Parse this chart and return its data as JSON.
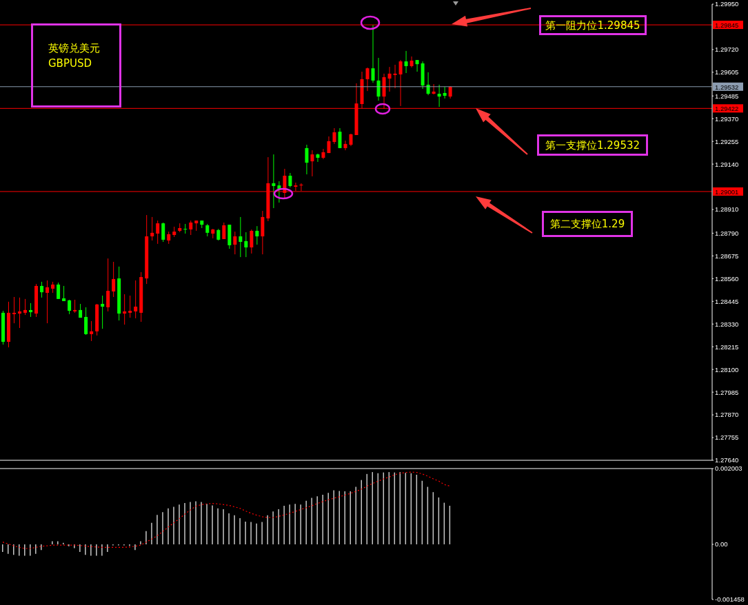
{
  "chart_data": [
    {
      "type": "candlestick",
      "categories": [
        null,
        null,
        null,
        null,
        null,
        null,
        null,
        null,
        null,
        null,
        null,
        null,
        null,
        null,
        null,
        null,
        null,
        null,
        null,
        null,
        null,
        null,
        null,
        null,
        null,
        null,
        null,
        null,
        null,
        null,
        null,
        null,
        null,
        null,
        null,
        null,
        null,
        null,
        null,
        null,
        null,
        null,
        null,
        null,
        null,
        null,
        null,
        null,
        null,
        null,
        null,
        null,
        null,
        null,
        null,
        null,
        null,
        null,
        null,
        null,
        null,
        null,
        null,
        null,
        null,
        null,
        null,
        null,
        null,
        null,
        null,
        null,
        null,
        null,
        null,
        null,
        null,
        null,
        null,
        null,
        null,
        null,
        null,
        null,
        null,
        null,
        null,
        null,
        null,
        null,
        null,
        null,
        null,
        null,
        null,
        null,
        null,
        null,
        null,
        null,
        null,
        null,
        null,
        null,
        null,
        null,
        null,
        null,
        null,
        null,
        null,
        null,
        null,
        null,
        null,
        null,
        null,
        null,
        null,
        null,
        null,
        null,
        null,
        null,
        null,
        null,
        null,
        null,
        null
      ],
      "ohlc": [
        [
          1.28387,
          1.28397,
          1.28226,
          1.2824
        ],
        [
          1.2824,
          1.28443,
          1.28212,
          1.28387
        ],
        [
          1.2838,
          1.28467,
          1.28334,
          1.28387
        ],
        [
          1.28383,
          1.28464,
          1.2831,
          1.28394
        ],
        [
          1.28387,
          1.28457,
          1.28376,
          1.28401
        ],
        [
          1.28401,
          1.28436,
          1.28366,
          1.2839
        ],
        [
          1.28383,
          1.28533,
          1.28366,
          1.28523
        ],
        [
          1.28523,
          1.28544,
          1.28464,
          1.28491
        ],
        [
          1.28488,
          1.28551,
          1.28334,
          1.28516
        ],
        [
          1.28509,
          1.28544,
          1.28488,
          1.2853
        ],
        [
          1.2853,
          1.2854,
          1.28457,
          1.28457
        ],
        [
          1.2846,
          1.28523,
          1.28446,
          1.28446
        ],
        [
          1.2845,
          1.28453,
          1.2838,
          1.28397
        ],
        [
          1.28394,
          1.28453,
          1.28387,
          1.28401
        ],
        [
          1.28401,
          1.28432,
          1.28362,
          1.28362
        ],
        [
          1.28366,
          1.28415,
          1.28275,
          1.28279
        ],
        [
          1.28279,
          1.28345,
          1.28244,
          1.28293
        ],
        [
          1.28293,
          1.28432,
          1.28272,
          1.28429
        ],
        [
          1.28432,
          1.28474,
          1.28306,
          1.28418
        ],
        [
          1.28415,
          1.28662,
          1.28394,
          1.28498
        ],
        [
          1.28495,
          1.28645,
          1.28467,
          1.28558
        ],
        [
          1.28561,
          1.28621,
          1.28348,
          1.28383
        ],
        [
          1.28383,
          1.28481,
          1.28327,
          1.28394
        ],
        [
          1.28387,
          1.28474,
          1.28362,
          1.28397
        ],
        [
          1.28394,
          1.28551,
          1.28359,
          1.28418
        ],
        [
          1.28387,
          1.28593,
          1.28341,
          1.28568
        ],
        [
          1.28561,
          1.28882,
          1.28533,
          1.28774
        ],
        [
          1.28774,
          1.28872,
          1.28753,
          1.28792
        ],
        [
          1.28788,
          1.28854,
          1.28736,
          1.2884
        ],
        [
          1.2884,
          1.28844,
          1.28746,
          1.28757
        ],
        [
          1.28753,
          1.28798,
          1.28736,
          1.28785
        ],
        [
          1.28781,
          1.28823,
          1.28771,
          1.28798
        ],
        [
          1.28802,
          1.2884,
          1.28795,
          1.28816
        ],
        [
          1.28812,
          1.28837,
          1.28788,
          1.28809
        ],
        [
          1.28809,
          1.28854,
          1.28781,
          1.28844
        ],
        [
          1.2884,
          1.28854,
          1.28802,
          1.28854
        ],
        [
          1.28854,
          1.28854,
          1.28816,
          1.28833
        ],
        [
          1.2883,
          1.28837,
          1.28774,
          1.28792
        ],
        [
          1.28788,
          1.28812,
          1.28764,
          1.28809
        ],
        [
          1.28806,
          1.28812,
          1.28753,
          1.28757
        ],
        [
          1.2876,
          1.28844,
          1.2876,
          1.2883
        ],
        [
          1.28833,
          1.28833,
          1.28711,
          1.28729
        ],
        [
          1.28732,
          1.28798,
          1.28683,
          1.28774
        ],
        [
          1.28774,
          1.28872,
          1.28669,
          1.28746
        ],
        [
          1.2875,
          1.28795,
          1.28669,
          1.28718
        ],
        [
          1.28718,
          1.28809,
          1.28687,
          1.28802
        ],
        [
          1.28802,
          1.28826,
          1.28732,
          1.28774
        ],
        [
          1.28774,
          1.28903,
          1.28683,
          1.28872
        ],
        [
          1.28865,
          1.29175,
          1.28851,
          1.29043
        ],
        [
          1.29043,
          1.29189,
          1.28917,
          1.29029
        ],
        [
          1.29032,
          1.29053,
          1.28945,
          1.29011
        ],
        [
          1.28994,
          1.29116,
          1.28969,
          1.29081
        ],
        [
          1.29081,
          1.29095,
          1.29022,
          1.29029
        ],
        [
          1.29025,
          1.29046,
          1.29004,
          1.29032
        ],
        [
          1.29032,
          1.29043,
          1.29004,
          1.29036
        ],
        [
          1.29221,
          1.29238,
          1.29088,
          1.29147
        ],
        [
          1.29154,
          1.2921,
          1.29078,
          1.29189
        ],
        [
          1.29189,
          1.29193,
          1.29151,
          1.29172
        ],
        [
          1.29172,
          1.29217,
          1.29165,
          1.292
        ],
        [
          1.29196,
          1.2928,
          1.29196,
          1.29256
        ],
        [
          1.29252,
          1.29322,
          1.29242,
          1.29301
        ],
        [
          1.29304,
          1.29322,
          1.29221,
          1.29221
        ],
        [
          1.29221,
          1.29259,
          1.2921,
          1.29242
        ],
        [
          1.29238,
          1.29294,
          1.29231,
          1.29291
        ],
        [
          1.29287,
          1.29549,
          1.29287,
          1.29447
        ],
        [
          1.29444,
          1.29608,
          1.29423,
          1.2957
        ],
        [
          1.2957,
          1.29629,
          1.2951,
          1.29625
        ],
        [
          1.29625,
          1.29845,
          1.29552,
          1.29563
        ],
        [
          1.29563,
          1.29678,
          1.29461,
          1.29482
        ],
        [
          1.29482,
          1.29598,
          1.2942,
          1.2958
        ],
        [
          1.29573,
          1.29632,
          1.29507,
          1.29598
        ],
        [
          1.29591,
          1.29643,
          1.29524,
          1.29598
        ],
        [
          1.29594,
          1.29667,
          1.29434,
          1.2966
        ],
        [
          1.2966,
          1.29713,
          1.29601,
          1.29636
        ],
        [
          1.29636,
          1.29685,
          1.29629,
          1.29664
        ],
        [
          1.29667,
          1.29667,
          1.29608,
          1.29646
        ],
        [
          1.2965,
          1.2966,
          1.29521,
          1.29538
        ],
        [
          1.29542,
          1.29605,
          1.29489,
          1.29496
        ],
        [
          1.29496,
          1.29545,
          1.29493,
          1.29507
        ],
        [
          1.29496,
          1.29542,
          1.2943,
          1.29482
        ],
        [
          1.295,
          1.29531,
          1.29472,
          1.29486
        ],
        [
          1.29482,
          1.29535,
          1.29472,
          1.29531
        ],
        null,
        null,
        null,
        null,
        null,
        null,
        null,
        null,
        null,
        null,
        null,
        null,
        null,
        null,
        null,
        null,
        null,
        null,
        null,
        null,
        null,
        null,
        null,
        null,
        null,
        null,
        null,
        null,
        null,
        null,
        null,
        null,
        null,
        null,
        null,
        null,
        null,
        null,
        null,
        null,
        null,
        null,
        null,
        null,
        null,
        null,
        null
      ],
      "colors": [
        "#00ff00",
        "#ff0000",
        "#ff0000",
        "#ff0000",
        "#ff0000",
        "#00ff00",
        "#ff0000",
        "#00ff00",
        "#ff0000",
        "#ff0000",
        "#00ff00",
        "#00ff00",
        "#00ff00",
        "#ff0000",
        "#00ff00",
        "#00ff00",
        "#ff0000",
        "#ff0000",
        "#00ff00",
        "#ff0000",
        "#ff0000",
        "#00ff00",
        "#ff0000",
        "#ff0000",
        "#ff0000",
        "#ff0000",
        "#ff0000",
        "#ff0000",
        "#ff0000",
        "#00ff00",
        "#ff0000",
        "#ff0000",
        "#ff0000",
        "#00ff00",
        "#ff0000",
        "#ff0000",
        "#00ff00",
        "#00ff00",
        "#ff0000",
        "#00ff00",
        "#ff0000",
        "#00ff00",
        "#ff0000",
        "#00ff00",
        "#00ff00",
        "#ff0000",
        "#00ff00",
        "#ff0000",
        "#ff0000",
        "#00ff00",
        "#00ff00",
        "#ff0000",
        "#00ff00",
        "#ff0000",
        "#ff0000",
        "#00ff00",
        "#ff0000",
        "#00ff00",
        "#ff0000",
        "#ff0000",
        "#ff0000",
        "#00ff00",
        "#ff0000",
        "#ff0000",
        "#ff0000",
        "#ff0000",
        "#ff0000",
        "#00ff00",
        "#00ff00",
        "#ff0000",
        "#ff0000",
        "#ff0000",
        "#ff0000",
        "#00ff00",
        "#ff0000",
        "#00ff00",
        "#00ff00",
        "#00ff00",
        "#ff0000",
        "#00ff00",
        "#00ff00",
        "#ff0000",
        null,
        null,
        null,
        null,
        null,
        null,
        null,
        null,
        null,
        null,
        null,
        null,
        null,
        null,
        null,
        null,
        null,
        null,
        null,
        null,
        null,
        null,
        null,
        null,
        null,
        null,
        null,
        null,
        null,
        null,
        null,
        null,
        null,
        null,
        null,
        null,
        null,
        null,
        null,
        null,
        null,
        null,
        null,
        null,
        null,
        null,
        null
      ],
      "ylim": [
        1.2764,
        1.2995
      ],
      "yticks": [
        {
          "value": 1.2764,
          "label": "1.27640"
        },
        {
          "value": 1.27755,
          "label": "1.27755"
        },
        {
          "value": 1.2787,
          "label": "1.27870"
        },
        {
          "value": 1.27985,
          "label": "1.27985"
        },
        {
          "value": 1.281,
          "label": "1.28100"
        },
        {
          "value": 1.28215,
          "label": "1.28215"
        },
        {
          "value": 1.2833,
          "label": "1.28330"
        },
        {
          "value": 1.28445,
          "label": "1.28445"
        },
        {
          "value": 1.2856,
          "label": "1.28560"
        },
        {
          "value": 1.28675,
          "label": "1.28675"
        },
        {
          "value": 1.2879,
          "label": "1.28790"
        },
        {
          "value": 1.2891,
          "label": "1.28910"
        },
        {
          "value": 1.2914,
          "label": "1.29140"
        },
        {
          "value": 1.29255,
          "label": "1.29255"
        },
        {
          "value": 1.2937,
          "label": "1.29370"
        },
        {
          "value": 1.29485,
          "label": "1.29485"
        },
        {
          "value": 1.29605,
          "label": "1.29605"
        },
        {
          "value": 1.2972,
          "label": "1.29720"
        },
        {
          "value": 1.2995,
          "label": "1.29950"
        }
      ],
      "tick_labels": "y",
      "ref_lines": [
        {
          "axis": "y",
          "value": 1.29845,
          "label": "1.29845",
          "color": "#ff0000"
        },
        {
          "axis": "y",
          "value": 1.29532,
          "label": "1.29532",
          "color": "#8c9cb0"
        },
        {
          "axis": "y",
          "value": 1.29422,
          "label": "1.29422",
          "color": "#ff0000"
        },
        {
          "axis": "y",
          "value": 1.29001,
          "label": "1.29001",
          "color": "#ff0000"
        }
      ],
      "annotations": [
        "英镑兑美元",
        "GBPUSD",
        "第一阻力位1.29845",
        "第一支撑位1.29532",
        "第二支撑位1.29"
      ]
    },
    {
      "type": "bar",
      "categories": [
        null,
        null,
        null,
        null,
        null,
        null,
        null,
        null,
        null,
        null,
        null,
        null,
        null,
        null,
        null,
        null,
        null,
        null,
        null,
        null,
        null,
        null,
        null,
        null,
        null,
        null,
        null,
        null,
        null,
        null,
        null,
        null,
        null,
        null,
        null,
        null,
        null,
        null,
        null,
        null,
        null,
        null,
        null,
        null,
        null,
        null,
        null,
        null,
        null,
        null,
        null,
        null,
        null,
        null,
        null,
        null,
        null,
        null,
        null,
        null,
        null,
        null,
        null,
        null,
        null,
        null,
        null,
        null,
        null,
        null,
        null,
        null,
        null,
        null,
        null,
        null,
        null,
        null,
        null,
        null,
        null,
        null,
        null,
        null,
        null,
        null,
        null,
        null,
        null,
        null,
        null,
        null,
        null,
        null,
        null,
        null,
        null,
        null,
        null,
        null,
        null,
        null,
        null,
        null,
        null,
        null,
        null,
        null,
        null,
        null,
        null,
        null,
        null,
        null,
        null,
        null,
        null,
        null,
        null,
        null,
        null,
        null,
        null,
        null,
        null,
        null,
        null,
        null,
        null
      ],
      "series": [
        {
          "type": "bar",
          "color": "#c8c8c8",
          "values": [
            -0.0002,
            -0.00025,
            -0.00028,
            -0.0003,
            -0.0003,
            -0.0003,
            -0.00025,
            -0.00015,
            0,
            8e-05,
            8e-05,
            4e-05,
            -5e-05,
            -0.0001,
            -0.0002,
            -0.00028,
            -0.0003,
            -0.0003,
            -0.0003,
            -0.0002,
            -3e-05,
            -3e-05,
            -3e-05,
            -4e-05,
            -0.00015,
            8e-05,
            0.00035,
            0.00057,
            0.00078,
            0.00085,
            0.00095,
            0.00099,
            0.00105,
            0.00109,
            0.00112,
            0.00114,
            0.00112,
            0.00107,
            0.00103,
            0.00095,
            0.00093,
            0.00082,
            0.00077,
            0.00069,
            0.0006,
            0.00059,
            0.00055,
            0.00059,
            0.00077,
            0.00087,
            0.00093,
            0.00102,
            0.00105,
            0.00107,
            0.00105,
            0.00115,
            0.00123,
            0.00127,
            0.00131,
            0.00136,
            0.00143,
            0.00141,
            0.0014,
            0.0014,
            0.00152,
            0.0017,
            0.00186,
            0.00191,
            0.00188,
            0.0019,
            0.00191,
            0.0019,
            0.00191,
            0.00189,
            0.00188,
            0.00184,
            0.00168,
            0.00152,
            0.00138,
            0.00124,
            0.0011,
            0.00102,
            null,
            null,
            null,
            null,
            null,
            null,
            null,
            null,
            null,
            null,
            null,
            null,
            null,
            null,
            null,
            null,
            null,
            null,
            null,
            null,
            null,
            null,
            null,
            null,
            null,
            null,
            null,
            null,
            null,
            null,
            null,
            null,
            null,
            null,
            null,
            null,
            null,
            null,
            null,
            null,
            null,
            null,
            null,
            null,
            null,
            null,
            null
          ]
        },
        {
          "type": "line",
          "color": "#ff0000",
          "line_style": "dotted",
          "marker": "none",
          "values": [
            6e-05,
            1e-05,
            -4e-05,
            -8e-05,
            -0.00011,
            -0.00011,
            -8e-05,
            -5e-05,
            -4e-05,
            -2e-05,
            -2e-05,
            -2e-05,
            -2e-05,
            -2e-05,
            -3e-05,
            -5e-05,
            -6e-05,
            -7e-05,
            -8e-05,
            -8e-05,
            -8e-05,
            -8e-05,
            -8e-05,
            -7e-05,
            -5e-05,
            -2e-05,
            6e-05,
            0.00014,
            0.00023,
            0.00034,
            0.00046,
            0.00057,
            0.00068,
            0.0008,
            0.00091,
            0.00101,
            0.00105,
            0.00107,
            0.00108,
            0.00107,
            0.00105,
            0.00103,
            0.00099,
            0.00095,
            0.00088,
            0.00082,
            0.00077,
            0.00073,
            0.00071,
            0.00071,
            0.00074,
            0.00078,
            0.00082,
            0.00087,
            0.00092,
            0.00097,
            0.00102,
            0.00108,
            0.00113,
            0.00118,
            0.00122,
            0.00126,
            0.0013,
            0.00135,
            0.0014,
            0.00146,
            0.00154,
            0.00161,
            0.00167,
            0.00173,
            0.00178,
            0.00184,
            0.00188,
            0.0019,
            0.00191,
            0.0019,
            0.00186,
            0.0018,
            0.00173,
            0.00167,
            0.00158,
            0.00154,
            null,
            null,
            null,
            null,
            null,
            null,
            null,
            null,
            null,
            null,
            null,
            null,
            null,
            null,
            null,
            null,
            null,
            null,
            null,
            null,
            null,
            null,
            null,
            null,
            null,
            null,
            null,
            null,
            null,
            null,
            null,
            null,
            null,
            null,
            null,
            null,
            null,
            null,
            null,
            null,
            null,
            null,
            null,
            null,
            null,
            null,
            null
          ]
        }
      ],
      "ylim": [
        -0.001458,
        0.002003
      ],
      "yticks": [
        -0.001458,
        {
          "value": 0,
          "label": "0.00"
        },
        0.002003
      ],
      "tick_labels": "y"
    }
  ]
}
